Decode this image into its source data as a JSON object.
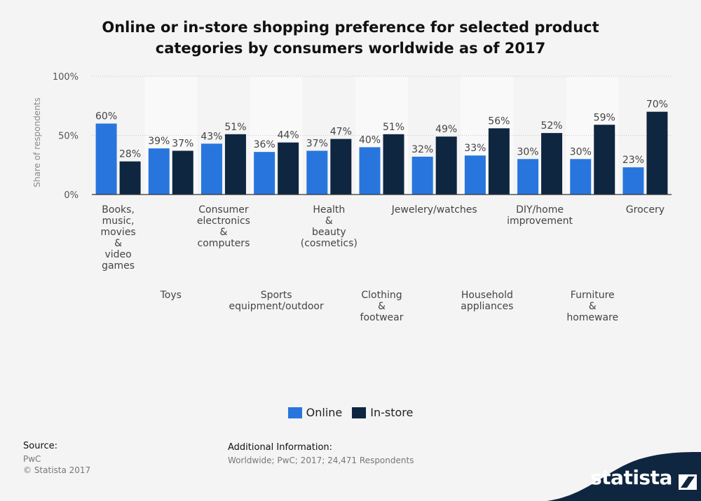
{
  "title_line1": "Online or in-store shopping preference for selected product",
  "title_line2": "categories by consumers worldwide as of 2017",
  "colors": {
    "online": "#2876dd",
    "instore": "#0f2640",
    "band": "#f9f9f9",
    "brand": "#0f2640"
  },
  "chart_data": {
    "type": "bar",
    "ylabel": "Share of respondents",
    "ylim": [
      0,
      100
    ],
    "yticks": [
      "0%",
      "50%",
      "100%"
    ],
    "categories": [
      [
        "Books,",
        "music,",
        "movies",
        "&",
        "video",
        "games"
      ],
      [
        "Toys"
      ],
      [
        "Consumer",
        "electronics",
        "&",
        "computers"
      ],
      [
        "Sports",
        "equipment/outdoor"
      ],
      [
        "Health",
        "&",
        "beauty",
        "(cosmetics)"
      ],
      [
        "Clothing",
        "&",
        "footwear"
      ],
      [
        "Jewelery/watches"
      ],
      [
        "Household",
        "appliances"
      ],
      [
        "DIY/home",
        "improvement"
      ],
      [
        "Furniture",
        "&",
        "homeware"
      ],
      [
        "Grocery"
      ]
    ],
    "series": [
      {
        "name": "Online",
        "values": [
          60,
          39,
          43,
          36,
          37,
          40,
          32,
          33,
          30,
          30,
          23
        ]
      },
      {
        "name": "In-store",
        "values": [
          28,
          37,
          51,
          44,
          47,
          51,
          49,
          56,
          52,
          59,
          70
        ]
      }
    ]
  },
  "legend": {
    "online": "Online",
    "instore": "In-store"
  },
  "footer": {
    "source_label": "Source:",
    "source_name": "PwC",
    "copyright": "© Statista 2017",
    "info_label": "Additional Information:",
    "info_text": "Worldwide; PwC; 2017; 24,471 Respondents",
    "brand": "statista"
  }
}
